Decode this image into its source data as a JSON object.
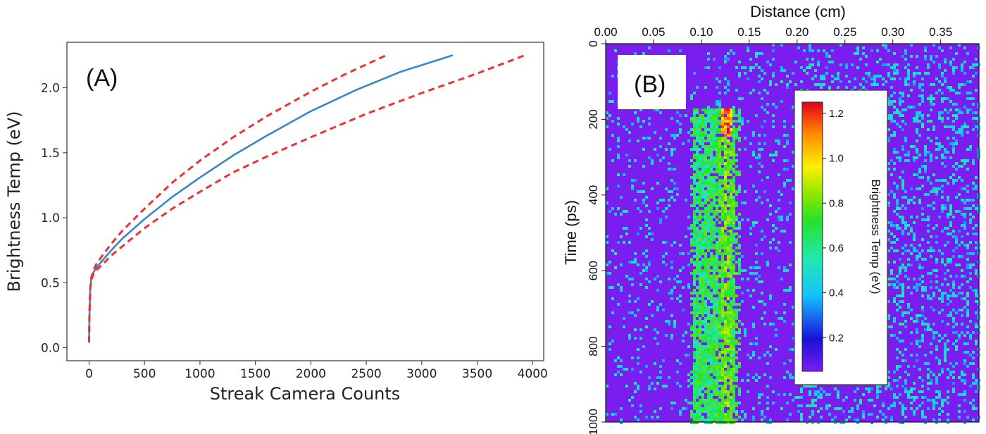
{
  "chart_data": [
    {
      "type": "line",
      "panel_label": "(A)",
      "xlabel": "Streak Camera Counts",
      "ylabel": "Brightness Temp (eV)",
      "xlim": [
        -200,
        4100
      ],
      "ylim": [
        -0.1,
        2.35
      ],
      "xticks": [
        0,
        500,
        1000,
        1500,
        2000,
        2500,
        3000,
        3500,
        4000
      ],
      "yticks": [
        0.0,
        0.5,
        1.0,
        1.5,
        2.0
      ],
      "xtick_labels": [
        "0",
        "500",
        "1000",
        "1500",
        "2000",
        "2500",
        "3000",
        "3500",
        "4000"
      ],
      "ytick_labels": [
        "0.0",
        "0.5",
        "1.0",
        "1.5",
        "2.0"
      ],
      "grid": false,
      "series": [
        {
          "style": "solid",
          "color": "#3a87c8",
          "x": [
            0,
            3,
            10,
            20,
            40,
            70,
            120,
            200,
            300,
            500,
            750,
            1000,
            1300,
            1600,
            2000,
            2400,
            2800,
            3280
          ],
          "y": [
            0.04,
            0.25,
            0.45,
            0.53,
            0.58,
            0.62,
            0.67,
            0.75,
            0.84,
            0.99,
            1.16,
            1.31,
            1.48,
            1.63,
            1.82,
            1.98,
            2.12,
            2.25
          ]
        },
        {
          "style": "dashed",
          "color": "#ee3333",
          "x": [
            0,
            3,
            10,
            20,
            40,
            70,
            120,
            200,
            300,
            500,
            750,
            1000,
            1300,
            1600,
            2000,
            2300,
            2680
          ],
          "y": [
            0.04,
            0.25,
            0.45,
            0.54,
            0.6,
            0.65,
            0.71,
            0.8,
            0.9,
            1.07,
            1.27,
            1.44,
            1.62,
            1.78,
            1.97,
            2.1,
            2.25
          ]
        },
        {
          "style": "dashed",
          "color": "#ee3333",
          "x": [
            0,
            3,
            10,
            20,
            40,
            70,
            120,
            200,
            300,
            500,
            750,
            1000,
            1300,
            1600,
            2000,
            2500,
            3000,
            3500,
            3930
          ],
          "y": [
            0.04,
            0.25,
            0.45,
            0.52,
            0.57,
            0.6,
            0.64,
            0.71,
            0.78,
            0.92,
            1.07,
            1.2,
            1.35,
            1.47,
            1.62,
            1.8,
            1.96,
            2.11,
            2.25
          ]
        }
      ]
    },
    {
      "type": "heatmap",
      "panel_label": "(B)",
      "title": "Distance (cm)",
      "ylabel": "Time (ps)",
      "xlim": [
        0.0,
        0.39
      ],
      "ylim": [
        1000,
        0
      ],
      "xticks": [
        0.0,
        0.05,
        0.1,
        0.15,
        0.2,
        0.25,
        0.3,
        0.35
      ],
      "xtick_labels": [
        "0.00",
        "0.05",
        "0.10",
        "0.15",
        "0.20",
        "0.25",
        "0.30",
        "0.35"
      ],
      "yticks": [
        0,
        200,
        400,
        600,
        800,
        1000
      ],
      "ytick_labels": [
        "0",
        "200",
        "400",
        "600",
        "800",
        "1000"
      ],
      "colorbar": {
        "label": "Brightness Temp (eV)",
        "range": [
          0.05,
          1.25
        ],
        "ticks": [
          0.2,
          0.4,
          0.6,
          0.8,
          1.0,
          1.2
        ],
        "tick_labels": [
          "0.2",
          "0.4",
          "0.6",
          "0.8",
          "1.0",
          "1.2"
        ]
      },
      "features": {
        "background_value": 0.15,
        "column_x_range": [
          0.09,
          0.135
        ],
        "column_time_start": 170,
        "column_value": 0.65,
        "column_peak_value": 1.2,
        "column_peak_x": 0.125,
        "column_peak_time_range": [
          170,
          240
        ]
      }
    }
  ]
}
